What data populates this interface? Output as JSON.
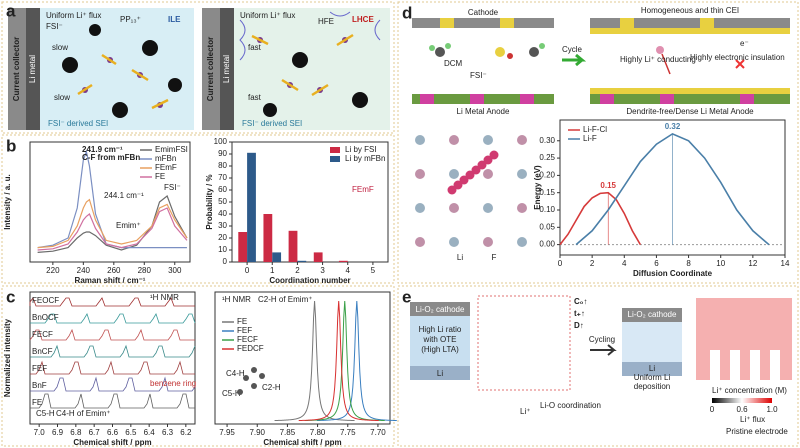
{
  "panel_a": {
    "label": "a",
    "left": {
      "collector": "Current collector",
      "metal": "Li metal",
      "flux": "Uniform Li⁺ flux",
      "anion": "FSI⁻",
      "cation": "PP₁₃⁺",
      "name": "ILE",
      "slow_top": "slow",
      "slow_bottom": "slow",
      "sei": "FSI⁻ derived SEI"
    },
    "right": {
      "collector": "Current collector",
      "metal": "Li metal",
      "flux": "Uniform Li⁺ flux",
      "diluent": "HFE",
      "name": "LHCE",
      "fast_top": "fast",
      "fast_bottom": "fast",
      "sei": "FSI⁻ derived SEI"
    }
  },
  "panel_b": {
    "label": "b",
    "raman": {
      "type": "line",
      "ylabel": "Intensity / a. u.",
      "xlabel": "Raman shift / cm⁻¹",
      "x": [
        210,
        220,
        230,
        236,
        240,
        242,
        244,
        248,
        255,
        265,
        275,
        285,
        290,
        295,
        300,
        308
      ],
      "xlim": [
        205,
        310
      ],
      "xticks": [
        220,
        240,
        260,
        280,
        300
      ],
      "ylim": [
        0,
        1
      ],
      "series": [
        {
          "name": "EmimFSI",
          "color": "#6b6b6b",
          "values": [
            0.08,
            0.09,
            0.12,
            0.2,
            0.24,
            0.25,
            0.25,
            0.22,
            0.14,
            0.1,
            0.14,
            0.3,
            0.5,
            0.55,
            0.38,
            0.2
          ]
        },
        {
          "name": "mFBn",
          "color": "#7b8fc2",
          "values": [
            0.12,
            0.14,
            0.2,
            0.45,
            0.85,
            0.92,
            0.8,
            0.4,
            0.15,
            0.12,
            0.12,
            0.12,
            0.12,
            0.12,
            0.12,
            0.12
          ]
        },
        {
          "name": "FEmF",
          "color": "#e8a060",
          "values": [
            0.12,
            0.13,
            0.18,
            0.3,
            0.45,
            0.5,
            0.52,
            0.35,
            0.18,
            0.15,
            0.18,
            0.3,
            0.45,
            0.48,
            0.35,
            0.2
          ]
        },
        {
          "name": "FE",
          "color": "#d070a0",
          "values": [
            0.1,
            0.11,
            0.15,
            0.25,
            0.35,
            0.38,
            0.4,
            0.28,
            0.15,
            0.12,
            0.15,
            0.28,
            0.42,
            0.45,
            0.3,
            0.18
          ]
        }
      ],
      "annotations": [
        "241.9 cm⁻¹",
        "C-F from mFBn",
        "244.1 cm⁻¹",
        "Emim⁺",
        "FSI⁻"
      ]
    },
    "bars": {
      "type": "bar",
      "ylabel": "Probability / %",
      "xlabel": "Coordination number",
      "x": [
        0,
        1,
        2,
        3,
        4,
        5
      ],
      "xlim": [
        -0.6,
        5.6
      ],
      "xticks": [
        0,
        1,
        2,
        3,
        4,
        5
      ],
      "ylim": [
        0,
        100
      ],
      "yticks": [
        0,
        10,
        20,
        30,
        40,
        50,
        60,
        70,
        80,
        90,
        100
      ],
      "series": [
        {
          "name": "Li by FSI",
          "color": "#cc2a44",
          "values": [
            25,
            40,
            26,
            8,
            1,
            0
          ]
        },
        {
          "name": "Li by mFBn",
          "color": "#2d5a8a",
          "values": [
            91,
            8,
            1,
            0,
            0,
            0
          ]
        }
      ],
      "note": "FEmF"
    }
  },
  "panel_c": {
    "label": "c",
    "left": {
      "ylabel": "Normalized intensity",
      "xlabel": "Chemical shift / ppm",
      "xlim": [
        7.05,
        6.15
      ],
      "xticks": [
        {
          "value": 7,
          "label": "7.0"
        },
        6.9,
        6.8,
        6.7,
        6.6,
        6.5,
        6.4,
        6.3,
        6.2
      ],
      "title": "¹H NMR",
      "traces": [
        "FEOCF",
        "BnOCF",
        "FECF",
        "BnCF",
        "FEF",
        "BnF",
        "FE"
      ],
      "annotations": [
        "benzene ring",
        "C5-H",
        "C4-H of Emim⁺"
      ]
    },
    "right": {
      "type": "peaks",
      "title": "¹H NMR",
      "annotation": "C2-H of Emim⁺",
      "xlabel": "Chemical shift / ppm",
      "xlim": [
        7.97,
        7.68
      ],
      "xticks": [
        7.95,
        {
          "value": 7.9,
          "label": "7.90"
        },
        7.85,
        {
          "value": 7.8,
          "label": "7.80"
        },
        7.75,
        {
          "value": 7.7,
          "label": "7.70"
        }
      ],
      "series": [
        {
          "name": "FE",
          "color": "#777777",
          "peak": 7.805
        },
        {
          "name": "FEF",
          "color": "#3a7fc0",
          "peak": 7.735
        },
        {
          "name": "FECF",
          "color": "#3aa048",
          "peak": 7.755
        },
        {
          "name": "FEDCF",
          "color": "#d83030",
          "peak": 7.765
        }
      ],
      "molecule_labels": [
        "C4-H",
        "C5-H",
        "C2-H"
      ]
    }
  },
  "panel_d": {
    "label": "d",
    "scheme": {
      "cathode": "Cathode",
      "solvent": "DCM",
      "anion": "FSI⁻",
      "anode": "Li Metal Anode",
      "arrow": "Cycle",
      "cei": "Homogeneous and thin CEI",
      "conducting": "Highly Li⁺ conducting",
      "insulation": "Highly electronic insulation",
      "electron": "e⁻",
      "anode_after": "Dendrite-free/Dense  Li Metal Anode",
      "atom_li": "Li",
      "atom_f": "F"
    },
    "chart": {
      "type": "line",
      "ylabel": "Energy (eV)",
      "xlabel": "Diffusion Coordinate",
      "xlim": [
        0,
        14
      ],
      "xticks": [
        0,
        2,
        4,
        6,
        8,
        10,
        12,
        14
      ],
      "ylim": [
        -0.03,
        0.36
      ],
      "yticks": [
        {
          "value": 0,
          "label": "0.00"
        },
        0.05,
        {
          "value": 0.1,
          "label": "0.10"
        },
        0.15,
        {
          "value": 0.2,
          "label": "0.20"
        },
        0.25,
        {
          "value": 0.3,
          "label": "0.30"
        }
      ],
      "series": [
        {
          "name": "Li-F-Cl",
          "color": "#d63a3a",
          "x": [
            0,
            0.5,
            1,
            1.5,
            2,
            2.5,
            3,
            3.5,
            4,
            4.5,
            5
          ],
          "y": [
            0,
            0.03,
            0.07,
            0.11,
            0.135,
            0.148,
            0.15,
            0.13,
            0.09,
            0.04,
            0
          ]
        },
        {
          "name": "Li-F",
          "color": "#4a7fa8",
          "x": [
            1,
            2,
            3,
            4,
            5,
            6,
            7,
            8,
            9,
            10,
            11,
            12,
            13
          ],
          "y": [
            0,
            0.04,
            0.1,
            0.17,
            0.24,
            0.29,
            0.32,
            0.3,
            0.25,
            0.18,
            0.1,
            0.04,
            0
          ]
        }
      ]
    }
  },
  "panel_e": {
    "label": "e",
    "cathode": "Li-O₂ cathode",
    "ratio": "High Li ratio",
    "ote": "with OTE",
    "lta": "(High LTA)",
    "li": "Li",
    "c0": "C₀↑",
    "tplus": "t₊↑",
    "d": "D↑",
    "arrow": "Cycling",
    "cathode_after": "Li-O₂ cathode",
    "deposit": "Uniform Li",
    "deposit2": "deposition",
    "li_after": "Li",
    "coordination": "Li-O coordination",
    "li_ion": "Li⁺",
    "conc": "Li⁺ concentration (M)",
    "c_min": "0",
    "c_mid": "0.6",
    "c_max": "1.0",
    "flux": "Li⁺ flux",
    "pristine": "Pristine  electrode"
  }
}
